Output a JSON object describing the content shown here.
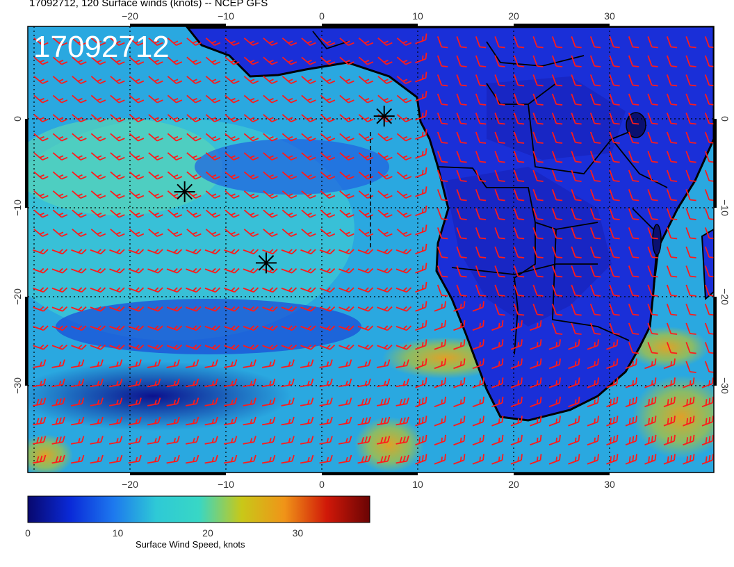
{
  "title": "17092712, 120 Surface winds (knots) -- NCEP GFS",
  "date_stamp": "17092712",
  "map": {
    "lon_ticks": [
      {
        "value": -20,
        "label": "−20"
      },
      {
        "value": -10,
        "label": "−10"
      },
      {
        "value": 0,
        "label": "0"
      },
      {
        "value": 10,
        "label": "10"
      },
      {
        "value": 20,
        "label": "20"
      },
      {
        "value": 30,
        "label": "30"
      }
    ],
    "lat_ticks": [
      {
        "value": 0,
        "label": "0"
      },
      {
        "value": -10,
        "label": "−10"
      },
      {
        "value": -20,
        "label": "−20"
      },
      {
        "value": -30,
        "label": "−30"
      }
    ],
    "markers": [
      {
        "lon": 6.5,
        "lat": 0.3
      },
      {
        "lon": -14.3,
        "lat": -8.2
      },
      {
        "lon": -5.8,
        "lat": -16.2
      }
    ],
    "barb_color": "#ff1a1a",
    "coast_color": "#000000"
  },
  "colorbar": {
    "label": "Surface Wind Speed, knots",
    "ticks": [
      {
        "value": 0,
        "label": "0"
      },
      {
        "value": 10,
        "label": "10"
      },
      {
        "value": 20,
        "label": "20"
      },
      {
        "value": 30,
        "label": "30"
      }
    ],
    "range": [
      0,
      38
    ],
    "colors": [
      "#08086e",
      "#0a2ad8",
      "#1d78ee",
      "#2ec9d6",
      "#38d7c5",
      "#c8c818",
      "#f09418",
      "#d01808",
      "#6a0404"
    ]
  }
}
